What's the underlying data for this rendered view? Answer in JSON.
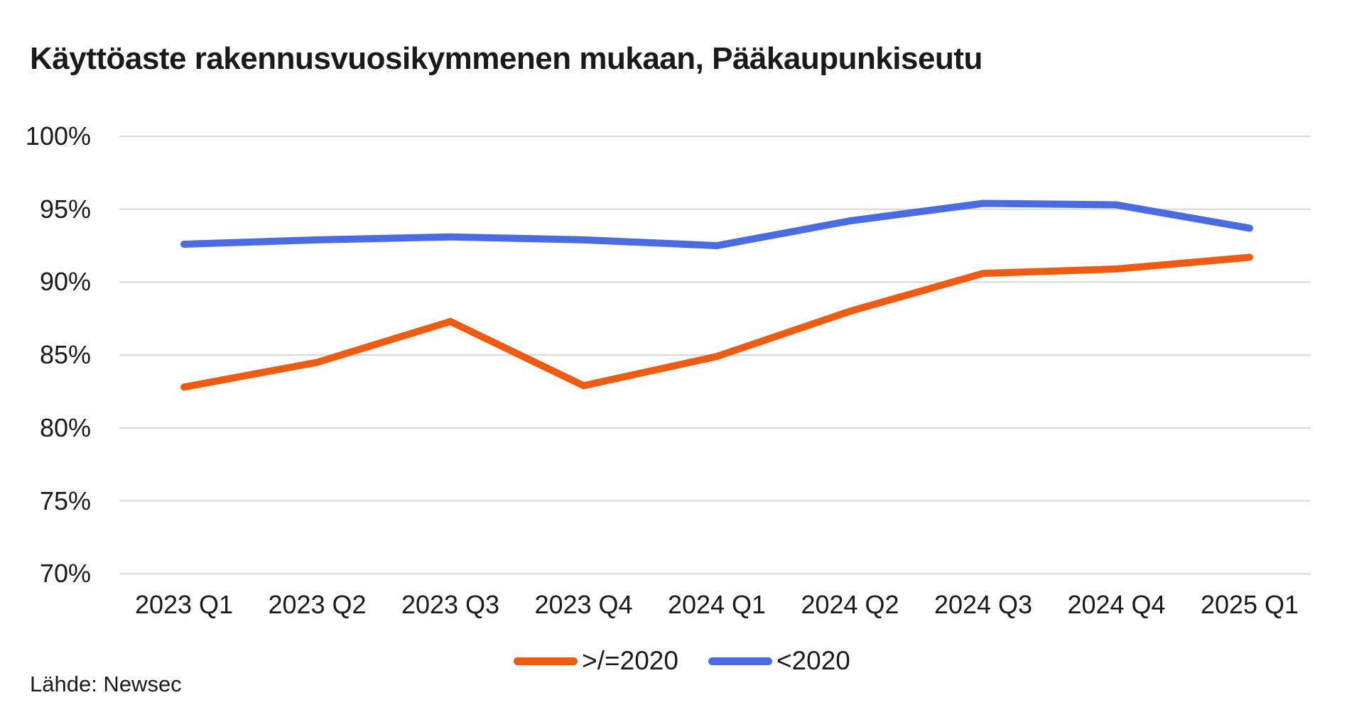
{
  "chart_data": {
    "type": "line",
    "title": "Käyttöaste rakennusvuosikymmenen mukaan, Pääkaupunkiseutu",
    "source": "Lähde: Newsec",
    "categories": [
      "2023 Q1",
      "2023 Q2",
      "2023 Q3",
      "2023 Q4",
      "2024 Q1",
      "2024 Q2",
      "2024 Q3",
      "2024 Q4",
      "2025 Q1"
    ],
    "series": [
      {
        "name": ">/=2020",
        "color": "#ee5c13",
        "values": [
          82.8,
          84.5,
          87.3,
          82.9,
          84.9,
          88.0,
          90.6,
          90.9,
          91.7
        ]
      },
      {
        "name": "<2020",
        "color": "#4a6ce0",
        "values": [
          92.6,
          92.9,
          93.1,
          92.9,
          92.5,
          94.2,
          95.4,
          95.3,
          93.7
        ]
      }
    ],
    "ylim": [
      70,
      100
    ],
    "y_tick_step": 5,
    "y_tick_labels": [
      "100%",
      "95%",
      "90%",
      "85%",
      "80%",
      "75%",
      "70%"
    ],
    "xlabel": "",
    "ylabel": "",
    "grid": "horizontal",
    "gridline_color": "#d8d8d8",
    "text_color": "#1a1a1a",
    "background_color": "#ffffff",
    "legend_position": "bottom-center"
  }
}
